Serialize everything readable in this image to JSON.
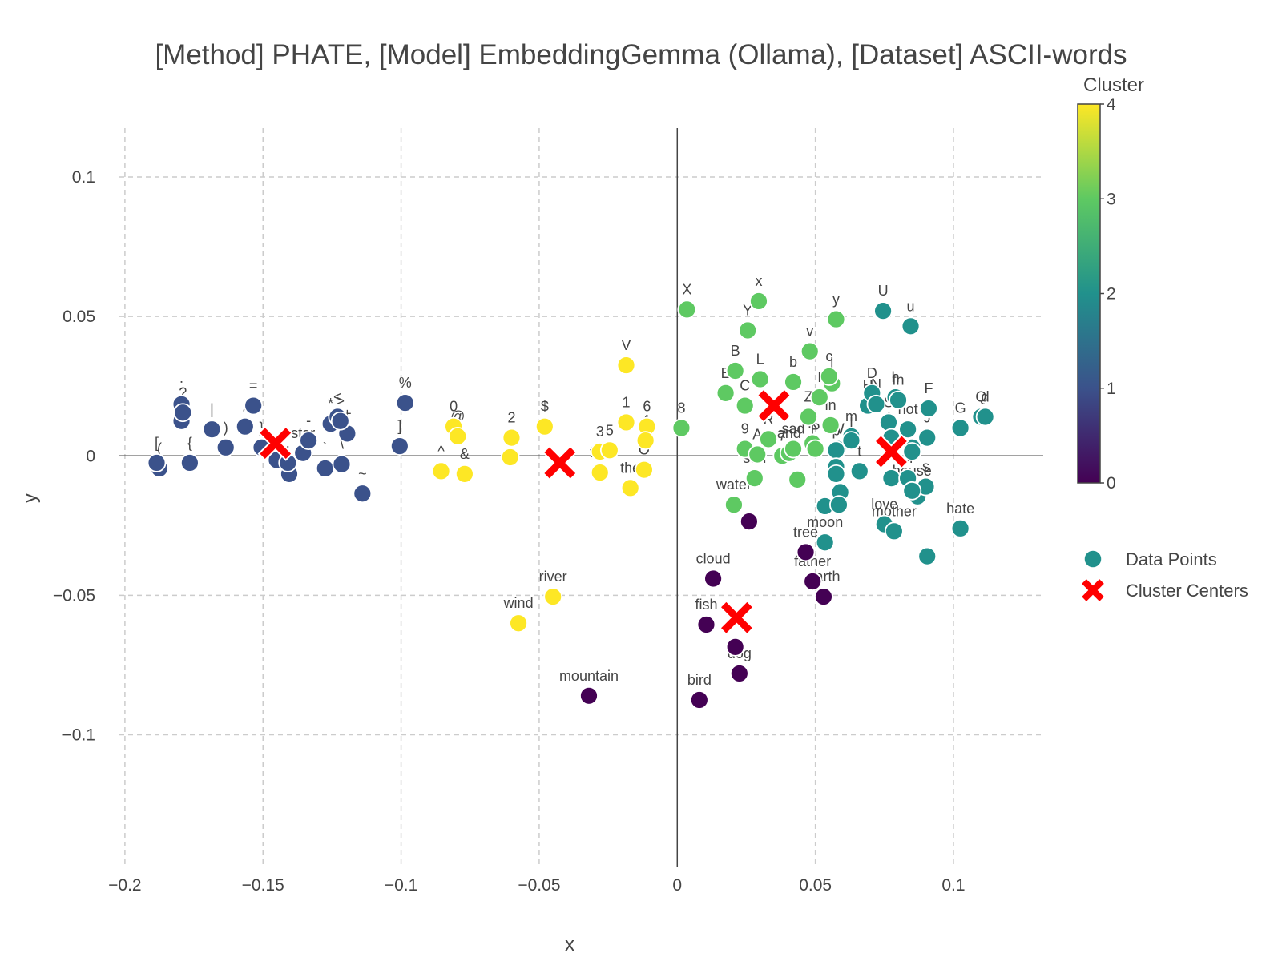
{
  "chart_data": {
    "type": "scatter",
    "title": "[Method] PHATE, [Model] EmbeddingGemma (Ollama), [Dataset] ASCII-words",
    "xlabel": "x",
    "ylabel": "y",
    "xlim": [
      -0.202,
      0.1325
    ],
    "ylim": [
      -0.1475,
      0.1175
    ],
    "xticks": [
      -0.2,
      -0.15,
      -0.1,
      -0.05,
      0,
      0.05,
      0.1
    ],
    "xtick_labels": [
      "−0.2",
      "−0.15",
      "−0.1",
      "−0.05",
      "0",
      "0.05",
      "0.1"
    ],
    "yticks": [
      -0.1,
      -0.05,
      0,
      0.05,
      0.1
    ],
    "ytick_labels": [
      "−0.1",
      "−0.05",
      "0",
      "0.05",
      "0.1"
    ],
    "grid": true,
    "zero_lines": true,
    "colorscale": "viridis",
    "colorbar": {
      "title": "Cluster",
      "min": 0,
      "max": 4,
      "ticks": [
        0,
        1,
        2,
        3,
        4
      ]
    },
    "colorscale_stops": [
      "#440154",
      "#3b528b",
      "#21918c",
      "#5ec962",
      "#fde725"
    ],
    "legend": {
      "placement": "right",
      "items": [
        {
          "label": "Data Points",
          "marker": "circle",
          "color": "#21918c"
        },
        {
          "label": "Cluster Centers",
          "marker": "x",
          "color": "#ff0000"
        }
      ]
    },
    "series": [
      {
        "name": "Data Points",
        "points": [
          {
            "x": -0.1875,
            "y": -0.0045,
            "label": "(",
            "cluster": 1
          },
          {
            "x": -0.1885,
            "y": -0.0025,
            "label": "[",
            "cluster": 1
          },
          {
            "x": -0.1765,
            "y": -0.0025,
            "label": "{",
            "cluster": 1
          },
          {
            "x": -0.1795,
            "y": 0.0125,
            "label": ";",
            "cluster": 1
          },
          {
            "x": -0.1795,
            "y": 0.0185,
            "label": ":",
            "cluster": 1
          },
          {
            "x": -0.179,
            "y": 0.0155,
            "label": "?",
            "cluster": 1
          },
          {
            "x": -0.1685,
            "y": 0.0095,
            "label": "|",
            "cluster": 1
          },
          {
            "x": -0.1635,
            "y": 0.003,
            "label": ")",
            "cluster": 1
          },
          {
            "x": -0.1565,
            "y": 0.0105,
            "label": "/",
            "cluster": 1
          },
          {
            "x": -0.1535,
            "y": 0.018,
            "label": "=",
            "cluster": 1
          },
          {
            "x": -0.1505,
            "y": 0.003,
            "label": "}",
            "cluster": 1
          },
          {
            "x": -0.145,
            "y": -0.0015,
            "label": "",
            "cluster": 1
          },
          {
            "x": -0.1405,
            "y": -0.0065,
            "label": "",
            "cluster": 1
          },
          {
            "x": -0.141,
            "y": -0.0025,
            "label": ",",
            "cluster": 1
          },
          {
            "x": -0.1355,
            "y": 0.001,
            "label": "star",
            "cluster": 1
          },
          {
            "x": -0.1335,
            "y": 0.0055,
            "label": "-",
            "cluster": 1
          },
          {
            "x": -0.1275,
            "y": -0.0045,
            "label": "`",
            "cluster": 1
          },
          {
            "x": -0.1255,
            "y": 0.0115,
            "label": "*",
            "cluster": 1
          },
          {
            "x": -0.123,
            "y": 0.014,
            "label": "<",
            "cluster": 1
          },
          {
            "x": -0.1215,
            "y": -0.003,
            "label": "\\",
            "cluster": 1
          },
          {
            "x": -0.1195,
            "y": 0.008,
            "label": "+",
            "cluster": 1
          },
          {
            "x": -0.114,
            "y": -0.0135,
            "label": "~",
            "cluster": 1
          },
          {
            "x": -0.122,
            "y": 0.0125,
            "label": ">",
            "cluster": 1
          },
          {
            "x": -0.1005,
            "y": 0.0035,
            "label": "]",
            "cluster": 1
          },
          {
            "x": -0.0985,
            "y": 0.019,
            "label": "%",
            "cluster": 1
          },
          {
            "x": -0.0855,
            "y": -0.0055,
            "label": "^",
            "cluster": 4
          },
          {
            "x": -0.081,
            "y": 0.0105,
            "label": "0",
            "cluster": 4
          },
          {
            "x": -0.0795,
            "y": 0.007,
            "label": "@",
            "cluster": 4
          },
          {
            "x": -0.077,
            "y": -0.0065,
            "label": "&",
            "cluster": 4
          },
          {
            "x": -0.0605,
            "y": -0.0005,
            "label": "!",
            "cluster": 4
          },
          {
            "x": -0.06,
            "y": 0.0065,
            "label": "2",
            "cluster": 4
          },
          {
            "x": -0.048,
            "y": 0.0105,
            "label": "$",
            "cluster": 4
          },
          {
            "x": -0.028,
            "y": 0.0015,
            "label": "3",
            "cluster": 4
          },
          {
            "x": -0.0245,
            "y": 0.002,
            "label": "5",
            "cluster": 4
          },
          {
            "x": -0.028,
            "y": -0.006,
            "label": "fire",
            "cluster": 4
          },
          {
            "x": -0.0185,
            "y": 0.012,
            "label": "1",
            "cluster": 4
          },
          {
            "x": -0.0185,
            "y": 0.0325,
            "label": "V",
            "cluster": 4
          },
          {
            "x": -0.011,
            "y": 0.0105,
            "label": "6",
            "cluster": 4
          },
          {
            "x": -0.0115,
            "y": 0.0055,
            "label": "4",
            "cluster": 4
          },
          {
            "x": -0.012,
            "y": -0.005,
            "label": "O",
            "cluster": 4
          },
          {
            "x": -0.017,
            "y": -0.0115,
            "label": "the",
            "cluster": 4
          },
          {
            "x": -0.045,
            "y": -0.0505,
            "label": "river",
            "cluster": 4
          },
          {
            "x": -0.0575,
            "y": -0.06,
            "label": "wind",
            "cluster": 4
          },
          {
            "x": 0.0015,
            "y": 0.01,
            "label": "8",
            "cluster": 3
          },
          {
            "x": 0.0035,
            "y": 0.0525,
            "label": "X",
            "cluster": 3
          },
          {
            "x": 0.0295,
            "y": 0.0555,
            "label": "x",
            "cluster": 3
          },
          {
            "x": 0.0255,
            "y": 0.045,
            "label": "Y",
            "cluster": 3
          },
          {
            "x": 0.021,
            "y": 0.0305,
            "label": "B",
            "cluster": 3
          },
          {
            "x": 0.0175,
            "y": 0.0225,
            "label": "E",
            "cluster": 3
          },
          {
            "x": 0.03,
            "y": 0.0275,
            "label": "L",
            "cluster": 3
          },
          {
            "x": 0.0245,
            "y": 0.018,
            "label": "C",
            "cluster": 3
          },
          {
            "x": 0.042,
            "y": 0.0265,
            "label": "b",
            "cluster": 3
          },
          {
            "x": 0.048,
            "y": 0.0375,
            "label": "v",
            "cluster": 3
          },
          {
            "x": 0.0575,
            "y": 0.049,
            "label": "y",
            "cluster": 3
          },
          {
            "x": 0.056,
            "y": 0.026,
            "label": "l",
            "cluster": 3
          },
          {
            "x": 0.055,
            "y": 0.0285,
            "label": "c",
            "cluster": 3
          },
          {
            "x": 0.0515,
            "y": 0.021,
            "label": "I",
            "cluster": 3
          },
          {
            "x": 0.0475,
            "y": 0.014,
            "label": "Z",
            "cluster": 3
          },
          {
            "x": 0.0555,
            "y": 0.011,
            "label": "in",
            "cluster": 3
          },
          {
            "x": 0.0245,
            "y": 0.0025,
            "label": "9",
            "cluster": 3
          },
          {
            "x": 0.029,
            "y": 0.0005,
            "label": "A",
            "cluster": 3
          },
          {
            "x": 0.033,
            "y": 0.006,
            "label": "R",
            "cluster": 3
          },
          {
            "x": 0.038,
            "y": 0.0,
            "label": "7",
            "cluster": 3
          },
          {
            "x": 0.0405,
            "y": 0.001,
            "label": "and",
            "cluster": 3
          },
          {
            "x": 0.042,
            "y": 0.0025,
            "label": "sad",
            "cluster": 3
          },
          {
            "x": 0.049,
            "y": 0.0045,
            "label": "K",
            "cluster": 3
          },
          {
            "x": 0.05,
            "y": 0.0025,
            "label": "P",
            "cluster": 3
          },
          {
            "x": 0.028,
            "y": -0.008,
            "label": "sun",
            "cluster": 3
          },
          {
            "x": 0.0435,
            "y": -0.0085,
            "label": "",
            "cluster": 3
          },
          {
            "x": 0.0205,
            "y": -0.0175,
            "label": "water",
            "cluster": 3
          },
          {
            "x": 0.058,
            "y": 0.0025,
            "label": "W",
            "cluster": 2
          },
          {
            "x": 0.063,
            "y": 0.007,
            "label": "m",
            "cluster": 2
          },
          {
            "x": 0.063,
            "y": 0.0055,
            "label": "j",
            "cluster": 2
          },
          {
            "x": 0.069,
            "y": 0.018,
            "label": "H",
            "cluster": 2
          },
          {
            "x": 0.0705,
            "y": 0.0225,
            "label": "D",
            "cluster": 2
          },
          {
            "x": 0.072,
            "y": 0.0185,
            "label": "N",
            "cluster": 2
          },
          {
            "x": 0.079,
            "y": 0.021,
            "label": "h",
            "cluster": 2
          },
          {
            "x": 0.08,
            "y": 0.02,
            "label": "fn",
            "cluster": 2
          },
          {
            "x": 0.0745,
            "y": 0.052,
            "label": "U",
            "cluster": 2
          },
          {
            "x": 0.0845,
            "y": 0.0465,
            "label": "u",
            "cluster": 2
          },
          {
            "x": 0.091,
            "y": 0.017,
            "label": "F",
            "cluster": 2
          },
          {
            "x": 0.0905,
            "y": 0.0065,
            "label": "J",
            "cluster": 2
          },
          {
            "x": 0.1025,
            "y": 0.01,
            "label": "G",
            "cluster": 2
          },
          {
            "x": 0.11,
            "y": 0.014,
            "label": "Q",
            "cluster": 2
          },
          {
            "x": 0.1115,
            "y": 0.014,
            "label": "d",
            "cluster": 2
          },
          {
            "x": 0.0765,
            "y": 0.012,
            "label": "S",
            "cluster": 2
          },
          {
            "x": 0.0835,
            "y": 0.0095,
            "label": "not",
            "cluster": 2
          },
          {
            "x": 0.0775,
            "y": 0.0065,
            "label": "h",
            "cluster": 2
          },
          {
            "x": 0.085,
            "y": 0.003,
            "label": "2",
            "cluster": 2
          },
          {
            "x": 0.085,
            "y": 0.0015,
            "label": "",
            "cluster": 2
          },
          {
            "x": 0.0575,
            "y": 0.002,
            "label": "p",
            "cluster": 2
          },
          {
            "x": 0.0575,
            "y": -0.004,
            "label": "",
            "cluster": 2
          },
          {
            "x": 0.066,
            "y": -0.0055,
            "label": "t",
            "cluster": 2
          },
          {
            "x": 0.0575,
            "y": -0.0065,
            "label": "a",
            "cluster": 2
          },
          {
            "x": 0.059,
            "y": -0.013,
            "label": "o",
            "cluster": 2
          },
          {
            "x": 0.0535,
            "y": -0.018,
            "label": "",
            "cluster": 2
          },
          {
            "x": 0.0585,
            "y": -0.0175,
            "label": "",
            "cluster": 2
          },
          {
            "x": 0.0775,
            "y": -0.008,
            "label": "",
            "cluster": 2
          },
          {
            "x": 0.0835,
            "y": -0.008,
            "label": "or",
            "cluster": 2
          },
          {
            "x": 0.087,
            "y": -0.0145,
            "label": "",
            "cluster": 2
          },
          {
            "x": 0.09,
            "y": -0.011,
            "label": "s",
            "cluster": 2
          },
          {
            "x": 0.085,
            "y": -0.0125,
            "label": "house",
            "cluster": 2
          },
          {
            "x": 0.075,
            "y": -0.0245,
            "label": "love",
            "cluster": 2
          },
          {
            "x": 0.0785,
            "y": -0.027,
            "label": "mother",
            "cluster": 2
          },
          {
            "x": 0.0905,
            "y": -0.036,
            "label": "",
            "cluster": 2
          },
          {
            "x": 0.1025,
            "y": -0.026,
            "label": "hate",
            "cluster": 2
          },
          {
            "x": 0.0535,
            "y": -0.031,
            "label": "moon",
            "cluster": 2
          },
          {
            "x": 0.026,
            "y": -0.0235,
            "label": "",
            "cluster": 0
          },
          {
            "x": 0.0465,
            "y": -0.0345,
            "label": "tree",
            "cluster": 0
          },
          {
            "x": 0.049,
            "y": -0.045,
            "label": "father",
            "cluster": 0
          },
          {
            "x": 0.053,
            "y": -0.0505,
            "label": "earth",
            "cluster": 0
          },
          {
            "x": 0.013,
            "y": -0.044,
            "label": "cloud",
            "cluster": 0
          },
          {
            "x": 0.0105,
            "y": -0.0605,
            "label": "fish",
            "cluster": 0
          },
          {
            "x": 0.021,
            "y": -0.0685,
            "label": "",
            "cluster": 0
          },
          {
            "x": 0.0225,
            "y": -0.078,
            "label": "dog",
            "cluster": 0
          },
          {
            "x": 0.008,
            "y": -0.0875,
            "label": "bird",
            "cluster": 0
          },
          {
            "x": -0.032,
            "y": -0.086,
            "label": "mountain",
            "cluster": 0
          }
        ]
      },
      {
        "name": "Cluster Centers",
        "points": [
          {
            "x": -0.1455,
            "y": 0.0045
          },
          {
            "x": -0.0425,
            "y": -0.0025
          },
          {
            "x": 0.035,
            "y": 0.018
          },
          {
            "x": 0.0775,
            "y": 0.0015
          },
          {
            "x": 0.0215,
            "y": -0.058
          }
        ]
      }
    ]
  }
}
